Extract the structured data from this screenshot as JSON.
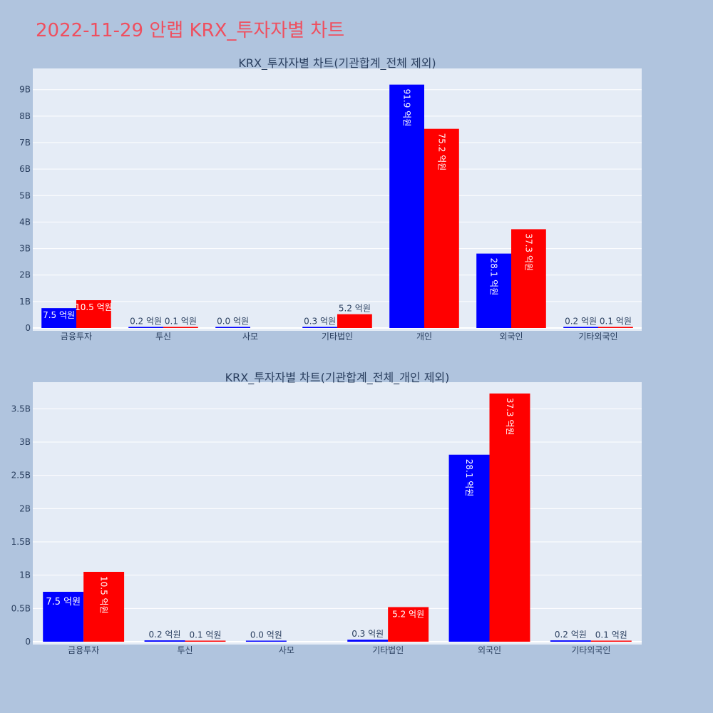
{
  "page": {
    "title": "2022-11-29 안랩 KRX_투자자별 차트"
  },
  "colors": {
    "background": "#b0c4de",
    "plot_bg": "#e5ecf6",
    "series_a": "#0000ff",
    "series_b": "#ff0000",
    "title": "#ef4f5f",
    "text": "#2a3f5f"
  },
  "chart_data": [
    {
      "type": "bar",
      "title": "KRX_투자자별 차트(기관합계_전체 제외)",
      "categories": [
        "금융투자",
        "투신",
        "사모",
        "기타법인",
        "개인",
        "외국인",
        "기타외국인"
      ],
      "series": [
        {
          "values": [
            750000000,
            20000000,
            0,
            30000000,
            9190000000,
            2810000000,
            20000000
          ],
          "labels": [
            "7.5 억원",
            "0.2 억원",
            "0.0 억원",
            "0.3 억원",
            "91.9 억원",
            "28.1 억원",
            "0.2 억원"
          ]
        },
        {
          "values": [
            1050000000,
            10000000,
            null,
            520000000,
            7520000000,
            3730000000,
            10000000
          ],
          "labels": [
            "10.5 억원",
            "0.1 억원",
            null,
            "5.2 억원",
            "75.2 억원",
            "37.3 억원",
            "0.1 억원"
          ]
        }
      ],
      "y_ticks": [
        0,
        1000000000,
        2000000000,
        3000000000,
        4000000000,
        5000000000,
        6000000000,
        7000000000,
        8000000000,
        9000000000
      ],
      "y_tick_labels": [
        "0",
        "1B",
        "2B",
        "3B",
        "4B",
        "5B",
        "6B",
        "7B",
        "8B",
        "9B"
      ],
      "ylim": [
        0,
        9800000000
      ],
      "grid": true
    },
    {
      "type": "bar",
      "title": "KRX_투자자별 차트(기관합계_전체_개인 제외)",
      "categories": [
        "금융투자",
        "투신",
        "사모",
        "기타법인",
        "외국인",
        "기타외국인"
      ],
      "series": [
        {
          "values": [
            750000000,
            20000000,
            0,
            30000000,
            2810000000,
            20000000
          ],
          "labels": [
            "7.5 억원",
            "0.2 억원",
            "0.0 억원",
            "0.3 억원",
            "28.1 억원",
            "0.2 억원"
          ]
        },
        {
          "values": [
            1050000000,
            10000000,
            null,
            520000000,
            3730000000,
            10000000
          ],
          "labels": [
            "10.5 억원",
            "0.1 억원",
            null,
            "5.2 억원",
            "37.3 억원",
            "0.1 억원"
          ]
        }
      ],
      "y_ticks": [
        0,
        500000000,
        1000000000,
        1500000000,
        2000000000,
        2500000000,
        3000000000,
        3500000000
      ],
      "y_tick_labels": [
        "0",
        "0.5B",
        "1B",
        "1.5B",
        "2B",
        "2.5B",
        "3B",
        "3.5B"
      ],
      "ylim": [
        0,
        3900000000
      ],
      "grid": true
    }
  ]
}
